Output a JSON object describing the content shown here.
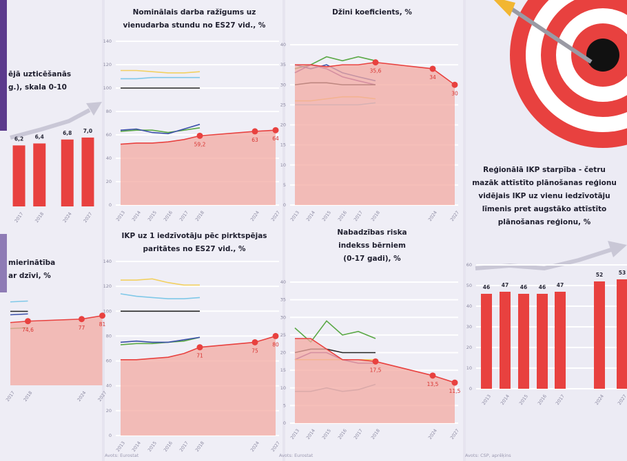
{
  "chart_data": [
    {
      "type": "bar",
      "title": [
        "ējā uzticēšanās",
        "g.), skala 0-10"
      ],
      "categories": [
        "2017",
        "2018",
        "2024",
        "2027"
      ],
      "values": [
        6.2,
        6.4,
        6.8,
        7.0
      ],
      "value_labels": [
        "6,2",
        "6,4",
        "6,8",
        "7,0"
      ],
      "color": "#e8413f",
      "ylim": [
        0,
        10
      ]
    },
    {
      "type": "line",
      "title": [
        "mierinātība",
        "ar dzīvi, %"
      ],
      "categories": [
        "2017",
        "2018",
        "2024",
        "2027"
      ],
      "ylim": [
        0,
        140
      ],
      "series": [
        {
          "color": "#7fc8e8",
          "values": [
            97,
            98,
            null,
            null
          ]
        },
        {
          "color": "#222222",
          "values": [
            86,
            86,
            null,
            null
          ]
        },
        {
          "color": "#3a4fa8",
          "values": [
            82,
            83,
            null,
            null
          ]
        },
        {
          "color": "#5aa845",
          "values": [
            66,
            67,
            null,
            null
          ]
        },
        {
          "color": "#e8413f",
          "area": true,
          "values": [
            73,
            74.6,
            77,
            81
          ],
          "value_labels": [
            null,
            "74,6",
            "77",
            "81"
          ]
        }
      ]
    },
    {
      "type": "line",
      "title": [
        "Nominālais darba ražīgums uz",
        "vienudarba stundu no ES27 vid., %"
      ],
      "categories": [
        "2013",
        "2014",
        "2015",
        "2016",
        "2017",
        "2018",
        "2024",
        "2027"
      ],
      "ylim": [
        0,
        140
      ],
      "yticks": [
        0,
        20,
        40,
        60,
        80,
        100,
        120,
        140
      ],
      "grid": true,
      "series": [
        {
          "color": "#f2d060",
          "values": [
            115,
            115,
            114,
            113,
            113,
            114,
            null,
            null
          ]
        },
        {
          "color": "#7fc8e8",
          "values": [
            108,
            108,
            109,
            109,
            109,
            109,
            null,
            null
          ]
        },
        {
          "color": "#222222",
          "values": [
            100,
            100,
            100,
            100,
            100,
            100,
            null,
            null
          ]
        },
        {
          "color": "#5aa845",
          "values": [
            63,
            64,
            64,
            62,
            64,
            66,
            null,
            null
          ]
        },
        {
          "color": "#3a4fa8",
          "values": [
            64,
            65,
            62,
            61,
            65,
            69,
            null,
            null
          ]
        },
        {
          "color": "#e8413f",
          "area": true,
          "values": [
            52,
            53,
            53,
            54,
            56,
            59.2,
            63,
            64
          ],
          "value_labels": [
            null,
            null,
            null,
            null,
            null,
            "59,2",
            "63",
            "64"
          ]
        }
      ]
    },
    {
      "type": "line",
      "title": [
        "IKP uz 1 iedzīvotāju pēc pirktspējas",
        "paritātes no ES27 vid., %"
      ],
      "categories": [
        "2013",
        "2014",
        "2015",
        "2016",
        "2017",
        "2018",
        "2024",
        "2027"
      ],
      "ylim": [
        0,
        140
      ],
      "yticks": [
        0,
        20,
        40,
        60,
        80,
        100,
        120,
        140
      ],
      "grid": true,
      "note": "Avots: Eurostat",
      "series": [
        {
          "color": "#f2d060",
          "values": [
            125,
            125,
            126,
            123,
            121,
            121,
            null,
            null
          ]
        },
        {
          "color": "#7fc8e8",
          "values": [
            114,
            112,
            111,
            110,
            110,
            111,
            null,
            null
          ]
        },
        {
          "color": "#222222",
          "values": [
            100,
            100,
            100,
            100,
            100,
            100,
            null,
            null
          ]
        },
        {
          "color": "#5aa845",
          "values": [
            73,
            74,
            74,
            75,
            76,
            79,
            null,
            null
          ]
        },
        {
          "color": "#3a4fa8",
          "values": [
            75,
            76,
            75,
            75,
            77,
            79,
            null,
            null
          ]
        },
        {
          "color": "#e8413f",
          "area": true,
          "values": [
            61,
            61,
            62,
            63,
            66,
            71,
            75,
            80
          ],
          "value_labels": [
            null,
            null,
            null,
            null,
            null,
            "71",
            "75",
            "80"
          ]
        }
      ]
    },
    {
      "type": "line",
      "title": [
        "Džini koeficients, %"
      ],
      "categories": [
        "2013",
        "2014",
        "2015",
        "2016",
        "2017",
        "2018",
        "2024",
        "2027"
      ],
      "ylim": [
        0,
        40
      ],
      "yticks": [
        0,
        5,
        10,
        15,
        20,
        25,
        30,
        35,
        40
      ],
      "grid": true,
      "series": [
        {
          "color": "#5aa845",
          "values": [
            34,
            35,
            37,
            36,
            37,
            36,
            null,
            null
          ]
        },
        {
          "color": "#3a4fa8",
          "values": [
            35,
            34,
            35,
            33,
            32,
            31,
            null,
            null
          ]
        },
        {
          "color": "#7a3f9a",
          "values": [
            33,
            35,
            34,
            32,
            31,
            30,
            null,
            null
          ]
        },
        {
          "color": "#222222",
          "values": [
            30,
            30.5,
            30.5,
            30,
            30,
            30,
            null,
            null
          ]
        },
        {
          "color": "#f2d060",
          "values": [
            26,
            26,
            26.5,
            27,
            27,
            26.5,
            null,
            null
          ]
        },
        {
          "color": "#7fc8e8",
          "values": [
            25,
            25,
            25,
            25,
            25,
            25.5,
            null,
            null
          ]
        },
        {
          "color": "#e8413f",
          "area": true,
          "values": [
            35,
            35,
            34.5,
            35,
            35,
            35.6,
            34,
            30
          ],
          "value_labels": [
            null,
            null,
            null,
            null,
            null,
            "35,6",
            "34",
            "30"
          ]
        }
      ]
    },
    {
      "type": "line",
      "title": [
        "Nabadzības riska",
        "indekss bērniem",
        "(0-17 gadi), %"
      ],
      "categories": [
        "2013",
        "2014",
        "2015",
        "2016",
        "2017",
        "2018",
        "2024",
        "2027"
      ],
      "ylim": [
        0,
        40
      ],
      "yticks": [
        0,
        5,
        10,
        15,
        20,
        25,
        30,
        35,
        40
      ],
      "grid": true,
      "note": "Avots: Eurostat",
      "series": [
        {
          "color": "#5aa845",
          "values": [
            27,
            23,
            29,
            25,
            26,
            24,
            null,
            null
          ]
        },
        {
          "color": "#222222",
          "values": [
            20,
            21,
            21,
            20,
            20,
            20,
            null,
            null
          ]
        },
        {
          "color": "#7a3f9a",
          "values": [
            18,
            20,
            20,
            18,
            17,
            17,
            null,
            null
          ]
        },
        {
          "color": "#f2d060",
          "values": [
            18,
            18,
            18,
            18,
            18,
            18,
            null,
            null
          ]
        },
        {
          "color": "#8fa9c0",
          "values": [
            9,
            9,
            10,
            9,
            9.5,
            11,
            null,
            null
          ]
        },
        {
          "color": "#e8413f",
          "area": true,
          "values": [
            24,
            24,
            21,
            18,
            18,
            17.5,
            13.5,
            11.5
          ],
          "value_labels": [
            null,
            null,
            null,
            null,
            null,
            "17,5",
            "13,5",
            "11,5"
          ]
        }
      ]
    },
    {
      "type": "bar",
      "title": [
        "Reģionālā IKP starpība - četru",
        "mazāk attīstīto plānošanas reģionu",
        "vidējais IKP uz vienu iedzīvotāju",
        "līmenis pret augstāko attīstīto",
        "plānošanas reģionu, %"
      ],
      "categories": [
        "2013",
        "2014",
        "2015",
        "2016",
        "2017",
        "2024",
        "2027"
      ],
      "values": [
        46,
        47,
        46,
        46,
        47,
        52,
        53
      ],
      "color": "#e8413f",
      "ylim": [
        0,
        60
      ],
      "yticks": [
        0,
        10,
        20,
        30,
        40,
        50,
        60
      ],
      "grid": true,
      "note": "Avots: CSP, aprēķins"
    }
  ]
}
